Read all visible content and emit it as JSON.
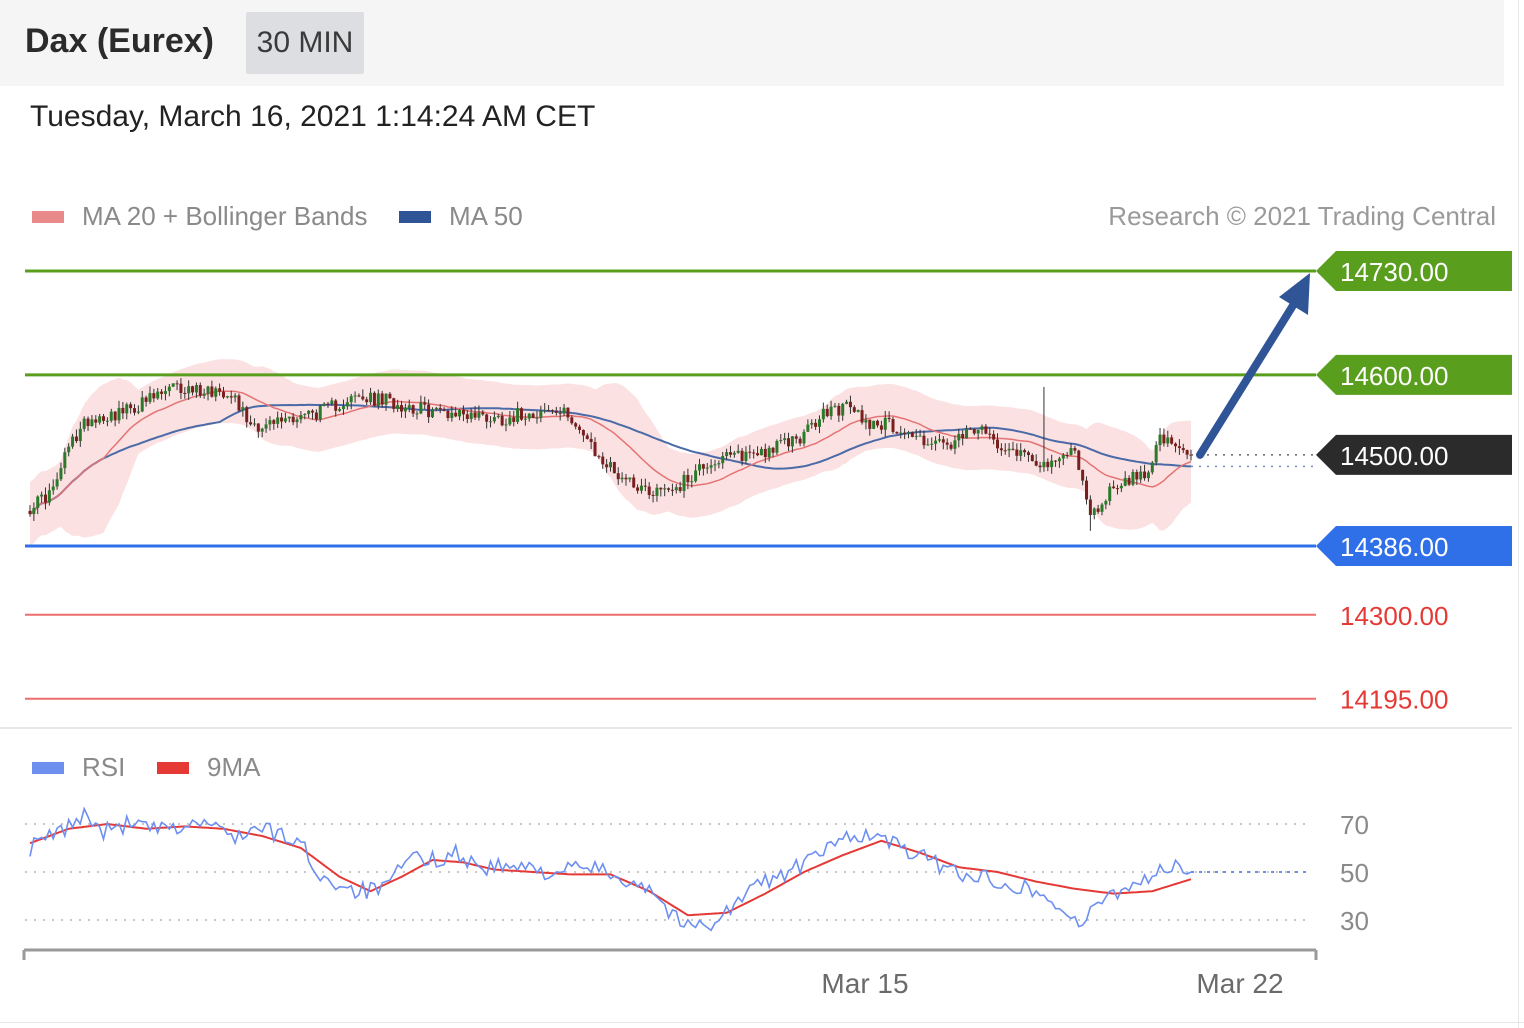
{
  "header": {
    "title": "Dax (Eurex)",
    "interval": "30 MIN"
  },
  "timestamp": "Tuesday, March 16, 2021 1:14:24 AM CET",
  "legend": [
    {
      "label": "MA 20 + Bollinger Bands",
      "color": "#e88a8a"
    },
    {
      "label": "MA 50",
      "color": "#2f5597"
    }
  ],
  "credit": "Research © 2021 Trading Central",
  "colors": {
    "resistance": "#5a9e1e",
    "support": "#2f6fe8",
    "support_minor": "#ee6d6d",
    "current": "#2b2b2b",
    "arrow": "#2f5597",
    "band": "#fbe1e1",
    "ma20": "#e57373",
    "ma50": "#4a6aa8",
    "rsi": "#6d8ff0",
    "rsi_ma": "#e53935"
  },
  "chart_data": [
    {
      "type": "candlestick",
      "title": "Dax (Eurex)",
      "interval": "30 MIN",
      "ylim": [
        14180,
        14770
      ],
      "x_ticks": [
        "Mar 15",
        "Mar 22"
      ],
      "series": [
        {
          "name": "MA 20 + Bollinger Bands"
        },
        {
          "name": "MA 50"
        }
      ],
      "close_anchors": [
        [
          0,
          14435
        ],
        [
          6,
          14455
        ],
        [
          10,
          14510
        ],
        [
          15,
          14545
        ],
        [
          25,
          14555
        ],
        [
          37,
          14583
        ],
        [
          52,
          14580
        ],
        [
          56,
          14545
        ],
        [
          60,
          14535
        ],
        [
          67,
          14547
        ],
        [
          76,
          14555
        ],
        [
          82,
          14570
        ],
        [
          92,
          14568
        ],
        [
          102,
          14556
        ],
        [
          112,
          14552
        ],
        [
          122,
          14545
        ],
        [
          128,
          14553
        ],
        [
          134,
          14555
        ],
        [
          140,
          14548
        ],
        [
          146,
          14500
        ],
        [
          152,
          14476
        ],
        [
          160,
          14455
        ],
        [
          168,
          14462
        ],
        [
          174,
          14488
        ],
        [
          182,
          14498
        ],
        [
          192,
          14508
        ],
        [
          200,
          14525
        ],
        [
          206,
          14555
        ],
        [
          212,
          14560
        ],
        [
          216,
          14542
        ],
        [
          222,
          14538
        ],
        [
          230,
          14520
        ],
        [
          238,
          14510
        ],
        [
          244,
          14532
        ],
        [
          252,
          14512
        ],
        [
          258,
          14500
        ],
        [
          264,
          14484
        ],
        [
          270,
          14511
        ],
        [
          274,
          14420
        ],
        [
          280,
          14462
        ],
        [
          288,
          14476
        ],
        [
          292,
          14520
        ],
        [
          298,
          14500
        ]
      ],
      "levels": [
        {
          "value": 14730,
          "label": "14730.00",
          "kind": "resistance"
        },
        {
          "value": 14600,
          "label": "14600.00",
          "kind": "resistance"
        },
        {
          "value": 14500,
          "label": "14500.00",
          "kind": "current"
        },
        {
          "value": 14386,
          "label": "14386.00",
          "kind": "support"
        },
        {
          "value": 14300,
          "label": "14300.00",
          "kind": "support_minor"
        },
        {
          "value": 14195,
          "label": "14195.00",
          "kind": "support_minor"
        }
      ],
      "forecast": {
        "from": 14500,
        "to": 14730,
        "direction": "up"
      }
    },
    {
      "type": "line",
      "title": "RSI",
      "series": [
        {
          "name": "RSI"
        },
        {
          "name": "9MA"
        }
      ],
      "ylim": [
        20,
        80
      ],
      "yticks": [
        70,
        50,
        30
      ],
      "rsi_anchors": [
        [
          0,
          60
        ],
        [
          10,
          69
        ],
        [
          15,
          75
        ],
        [
          18,
          66
        ],
        [
          25,
          70
        ],
        [
          35,
          67
        ],
        [
          45,
          71
        ],
        [
          52,
          65
        ],
        [
          60,
          68
        ],
        [
          70,
          62
        ],
        [
          75,
          48
        ],
        [
          85,
          42
        ],
        [
          92,
          43
        ],
        [
          98,
          56
        ],
        [
          104,
          55
        ],
        [
          110,
          58
        ],
        [
          116,
          52
        ],
        [
          125,
          52
        ],
        [
          135,
          50
        ],
        [
          145,
          52
        ],
        [
          152,
          48
        ],
        [
          160,
          44
        ],
        [
          166,
          32
        ],
        [
          170,
          27
        ],
        [
          176,
          29
        ],
        [
          182,
          36
        ],
        [
          188,
          45
        ],
        [
          196,
          50
        ],
        [
          204,
          57
        ],
        [
          212,
          66
        ],
        [
          220,
          64
        ],
        [
          228,
          58
        ],
        [
          236,
          52
        ],
        [
          244,
          48
        ],
        [
          252,
          46
        ],
        [
          260,
          42
        ],
        [
          266,
          35
        ],
        [
          272,
          28
        ],
        [
          278,
          40
        ],
        [
          285,
          45
        ],
        [
          290,
          49
        ],
        [
          295,
          52
        ],
        [
          300,
          50
        ]
      ],
      "rsi_ma_anchors": [
        [
          0,
          62
        ],
        [
          10,
          68
        ],
        [
          20,
          70
        ],
        [
          30,
          68
        ],
        [
          40,
          69
        ],
        [
          50,
          68
        ],
        [
          60,
          65
        ],
        [
          70,
          60
        ],
        [
          80,
          48
        ],
        [
          88,
          42
        ],
        [
          96,
          48
        ],
        [
          104,
          55
        ],
        [
          112,
          54
        ],
        [
          120,
          51
        ],
        [
          130,
          50
        ],
        [
          140,
          49
        ],
        [
          150,
          49
        ],
        [
          160,
          42
        ],
        [
          170,
          32
        ],
        [
          180,
          33
        ],
        [
          190,
          41
        ],
        [
          200,
          50
        ],
        [
          210,
          57
        ],
        [
          220,
          63
        ],
        [
          230,
          58
        ],
        [
          240,
          52
        ],
        [
          250,
          50
        ],
        [
          260,
          46
        ],
        [
          270,
          43
        ],
        [
          280,
          41
        ],
        [
          290,
          42
        ],
        [
          300,
          47
        ]
      ],
      "last_value": 50
    }
  ]
}
